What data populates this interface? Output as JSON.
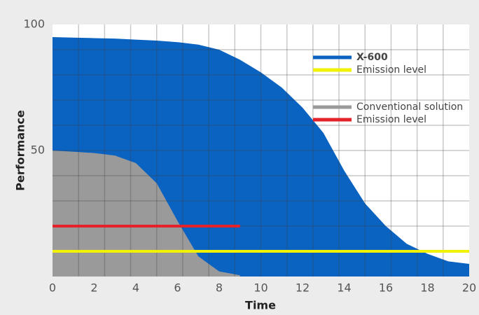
{
  "chart_data": {
    "type": "area",
    "xlabel": "Time",
    "ylabel": "Performance",
    "xlim": [
      0,
      20
    ],
    "ylim": [
      0,
      100
    ],
    "xticks": [
      0,
      2,
      4,
      6,
      8,
      10,
      12,
      14,
      16,
      18,
      20
    ],
    "yticks": [
      50,
      100
    ],
    "grid": true,
    "xgrid": [
      1.25,
      2.5,
      3.75,
      5,
      6.25,
      7.5,
      8.75,
      10,
      11.25,
      12.5,
      13.75,
      15,
      16.25,
      17.5,
      18.75
    ],
    "ygrid": [
      10,
      20,
      30,
      40,
      50,
      60,
      70,
      80,
      90
    ],
    "legend": "upper right",
    "series": [
      {
        "name": "X-600",
        "color": "#0b63c1",
        "style": "area",
        "x": [
          0,
          1,
          2,
          3,
          4,
          5,
          6,
          7,
          8,
          9,
          10,
          11,
          12,
          13,
          14,
          15,
          16,
          17,
          18,
          19,
          20
        ],
        "values": [
          95,
          94.8,
          94.6,
          94.4,
          94,
          93.6,
          93,
          92,
          90,
          86,
          81,
          75,
          67,
          57,
          42,
          29,
          20,
          13,
          9,
          6,
          5
        ]
      },
      {
        "name": "Emission level",
        "color": "#f2f200",
        "style": "line",
        "x": [
          0,
          20
        ],
        "values": [
          10,
          10
        ]
      },
      {
        "name": "Conventional solution",
        "color": "#9a9a9a",
        "style": "area",
        "x": [
          0,
          1,
          2,
          3,
          4,
          5,
          6,
          7,
          8,
          9
        ],
        "values": [
          50,
          49.5,
          49,
          48,
          45,
          37,
          22,
          8,
          2,
          0.5
        ]
      },
      {
        "name": "Emission level",
        "color": "#e3222a",
        "style": "line",
        "x": [
          0,
          9
        ],
        "values": [
          20,
          20
        ]
      }
    ]
  }
}
